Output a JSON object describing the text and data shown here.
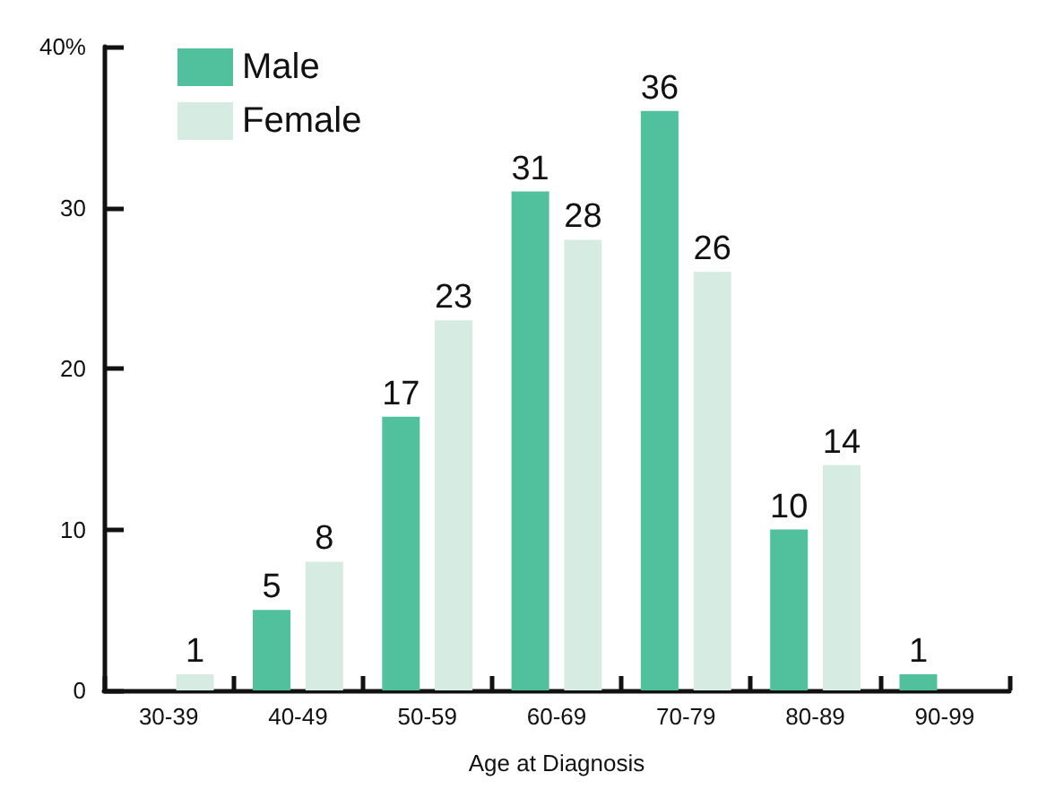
{
  "chart_data": {
    "type": "bar",
    "xlabel": "Age at Diagnosis",
    "categories": [
      "30-39",
      "40-49",
      "50-59",
      "60-69",
      "70-79",
      "80-89",
      "90-99"
    ],
    "series": [
      {
        "name": "Male",
        "color": "#50c19c",
        "values": [
          null,
          5,
          17,
          31,
          36,
          10,
          1
        ]
      },
      {
        "name": "Female",
        "color": "#d6ece3",
        "values": [
          1,
          8,
          23,
          28,
          26,
          14,
          null
        ]
      }
    ],
    "ylim": [
      0,
      40
    ],
    "yticks": [
      0,
      10,
      20,
      30,
      {
        "value": 40,
        "label": "40%"
      }
    ],
    "data_labels": true,
    "legend": "top left"
  }
}
